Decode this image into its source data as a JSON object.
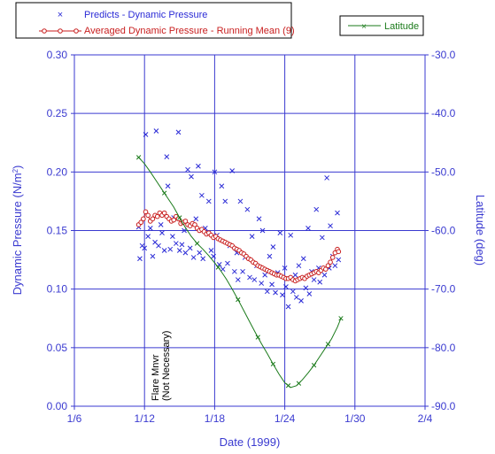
{
  "chart_data": {
    "type": "scatter",
    "xlabel": "Date (1999)",
    "ylabel_left": "Dynamic Pressure (N/m²)",
    "ylabel_left_main": "Dynamic Pressure (N/m",
    "ylabel_left_sup": "2",
    "ylabel_left_end": ")",
    "ylabel_right": "Latitude (deg)",
    "x_ticks": [
      "1/6",
      "1/12",
      "1/18",
      "1/24",
      "1/30",
      "2/4"
    ],
    "y_left_ticks": [
      "0.00",
      "0.05",
      "0.10",
      "0.15",
      "0.20",
      "0.25",
      "0.30"
    ],
    "y_right_ticks": [
      "-90.0",
      "-80.0",
      "-70.0",
      "-60.0",
      "-50.0",
      "-40.0",
      "-30.0"
    ],
    "xlim": [
      0,
      30
    ],
    "ylim_left": [
      0,
      0.3
    ],
    "ylim_right": [
      -90,
      -30
    ],
    "grid": true,
    "legend": {
      "predicts": "Predicts - Dynamic Pressure",
      "averaged": "Averaged Dynamic Pressure - Running Mean (9)",
      "latitude": "Latitude"
    },
    "annotation": {
      "line1": "Flare Mnvr",
      "line2": "(Not Necessary)"
    },
    "colors": {
      "predicts": "#2b2bd6",
      "averaged": "#c81e1e",
      "latitude": "#1a7a1a",
      "grid": "#3a3ad0",
      "text": "#3a3ad0"
    },
    "series": [
      {
        "name": "Predicts - Dynamic Pressure",
        "points": [
          [
            5.5,
            0.153
          ],
          [
            5.6,
            0.126
          ],
          [
            5.8,
            0.137
          ],
          [
            6.0,
            0.135
          ],
          [
            6.1,
            0.232
          ],
          [
            6.3,
            0.145
          ],
          [
            6.5,
            0.152
          ],
          [
            6.7,
            0.128
          ],
          [
            6.9,
            0.14
          ],
          [
            7.0,
            0.235
          ],
          [
            7.2,
            0.137
          ],
          [
            7.4,
            0.155
          ],
          [
            7.5,
            0.148
          ],
          [
            7.7,
            0.133
          ],
          [
            7.9,
            0.213
          ],
          [
            8.0,
            0.188
          ],
          [
            8.2,
            0.134
          ],
          [
            8.4,
            0.145
          ],
          [
            8.5,
            0.161
          ],
          [
            8.7,
            0.139
          ],
          [
            8.9,
            0.234
          ],
          [
            9.0,
            0.133
          ],
          [
            9.2,
            0.138
          ],
          [
            9.4,
            0.15
          ],
          [
            9.5,
            0.131
          ],
          [
            9.7,
            0.202
          ],
          [
            9.9,
            0.135
          ],
          [
            10.0,
            0.196
          ],
          [
            10.2,
            0.127
          ],
          [
            10.4,
            0.16
          ],
          [
            10.6,
            0.205
          ],
          [
            10.7,
            0.131
          ],
          [
            10.9,
            0.18
          ],
          [
            11.0,
            0.126
          ],
          [
            11.2,
            0.152
          ],
          [
            11.5,
            0.175
          ],
          [
            11.7,
            0.133
          ],
          [
            11.9,
            0.128
          ],
          [
            12.0,
            0.2
          ],
          [
            12.2,
            0.146
          ],
          [
            12.4,
            0.121
          ],
          [
            12.6,
            0.188
          ],
          [
            12.7,
            0.117
          ],
          [
            12.9,
            0.175
          ],
          [
            13.1,
            0.122
          ],
          [
            13.3,
            0.137
          ],
          [
            13.5,
            0.201
          ],
          [
            13.7,
            0.115
          ],
          [
            13.9,
            0.131
          ],
          [
            14.0,
            0.108
          ],
          [
            14.2,
            0.175
          ],
          [
            14.4,
            0.115
          ],
          [
            14.6,
            0.127
          ],
          [
            14.8,
            0.168
          ],
          [
            15.0,
            0.11
          ],
          [
            15.2,
            0.145
          ],
          [
            15.4,
            0.108
          ],
          [
            15.6,
            0.12
          ],
          [
            15.8,
            0.16
          ],
          [
            16.0,
            0.105
          ],
          [
            16.1,
            0.15
          ],
          [
            16.3,
            0.112
          ],
          [
            16.5,
            0.098
          ],
          [
            16.7,
            0.128
          ],
          [
            16.9,
            0.104
          ],
          [
            17.0,
            0.136
          ],
          [
            17.2,
            0.097
          ],
          [
            17.4,
            0.114
          ],
          [
            17.6,
            0.148
          ],
          [
            17.8,
            0.095
          ],
          [
            18.0,
            0.118
          ],
          [
            18.1,
            0.102
          ],
          [
            18.3,
            0.085
          ],
          [
            18.5,
            0.146
          ],
          [
            18.7,
            0.098
          ],
          [
            18.9,
            0.112
          ],
          [
            19.0,
            0.093
          ],
          [
            19.2,
            0.12
          ],
          [
            19.4,
            0.09
          ],
          [
            19.6,
            0.126
          ],
          [
            19.8,
            0.101
          ],
          [
            20.0,
            0.152
          ],
          [
            20.1,
            0.096
          ],
          [
            20.3,
            0.115
          ],
          [
            20.5,
            0.108
          ],
          [
            20.7,
            0.168
          ],
          [
            20.9,
            0.118
          ],
          [
            21.0,
            0.106
          ],
          [
            21.2,
            0.144
          ],
          [
            21.4,
            0.112
          ],
          [
            21.6,
            0.195
          ],
          [
            21.8,
            0.118
          ],
          [
            21.9,
            0.154
          ],
          [
            22.1,
            0.128
          ],
          [
            22.3,
            0.12
          ],
          [
            22.5,
            0.165
          ],
          [
            22.6,
            0.125
          ]
        ]
      },
      {
        "name": "Averaged Dynamic Pressure - Running Mean (9)",
        "points": [
          [
            5.5,
            0.155
          ],
          [
            5.7,
            0.157
          ],
          [
            5.9,
            0.16
          ],
          [
            6.1,
            0.166
          ],
          [
            6.3,
            0.163
          ],
          [
            6.5,
            0.158
          ],
          [
            6.7,
            0.16
          ],
          [
            6.9,
            0.163
          ],
          [
            7.1,
            0.162
          ],
          [
            7.3,
            0.165
          ],
          [
            7.5,
            0.163
          ],
          [
            7.7,
            0.165
          ],
          [
            7.9,
            0.162
          ],
          [
            8.1,
            0.16
          ],
          [
            8.3,
            0.158
          ],
          [
            8.5,
            0.159
          ],
          [
            8.7,
            0.162
          ],
          [
            8.9,
            0.16
          ],
          [
            9.1,
            0.156
          ],
          [
            9.3,
            0.157
          ],
          [
            9.5,
            0.158
          ],
          [
            9.7,
            0.155
          ],
          [
            9.9,
            0.154
          ],
          [
            10.1,
            0.156
          ],
          [
            10.3,
            0.155
          ],
          [
            10.5,
            0.152
          ],
          [
            10.7,
            0.15
          ],
          [
            10.9,
            0.151
          ],
          [
            11.1,
            0.149
          ],
          [
            11.3,
            0.147
          ],
          [
            11.5,
            0.148
          ],
          [
            11.7,
            0.146
          ],
          [
            11.9,
            0.144
          ],
          [
            12.1,
            0.145
          ],
          [
            12.3,
            0.143
          ],
          [
            12.5,
            0.142
          ],
          [
            12.7,
            0.141
          ],
          [
            12.9,
            0.14
          ],
          [
            13.1,
            0.139
          ],
          [
            13.3,
            0.138
          ],
          [
            13.5,
            0.137
          ],
          [
            13.7,
            0.135
          ],
          [
            13.9,
            0.134
          ],
          [
            14.1,
            0.133
          ],
          [
            14.3,
            0.131
          ],
          [
            14.5,
            0.13
          ],
          [
            14.7,
            0.128
          ],
          [
            14.9,
            0.126
          ],
          [
            15.1,
            0.125
          ],
          [
            15.3,
            0.123
          ],
          [
            15.5,
            0.122
          ],
          [
            15.7,
            0.12
          ],
          [
            15.9,
            0.119
          ],
          [
            16.1,
            0.118
          ],
          [
            16.3,
            0.117
          ],
          [
            16.5,
            0.116
          ],
          [
            16.7,
            0.115
          ],
          [
            16.9,
            0.114
          ],
          [
            17.1,
            0.113
          ],
          [
            17.3,
            0.112
          ],
          [
            17.5,
            0.112
          ],
          [
            17.7,
            0.111
          ],
          [
            17.9,
            0.11
          ],
          [
            18.1,
            0.109
          ],
          [
            18.3,
            0.109
          ],
          [
            18.5,
            0.11
          ],
          [
            18.7,
            0.108
          ],
          [
            18.9,
            0.107
          ],
          [
            19.1,
            0.108
          ],
          [
            19.3,
            0.109
          ],
          [
            19.5,
            0.11
          ],
          [
            19.7,
            0.109
          ],
          [
            19.9,
            0.111
          ],
          [
            20.1,
            0.112
          ],
          [
            20.3,
            0.113
          ],
          [
            20.5,
            0.114
          ],
          [
            20.7,
            0.115
          ],
          [
            20.9,
            0.114
          ],
          [
            21.1,
            0.116
          ],
          [
            21.3,
            0.118
          ],
          [
            21.5,
            0.117
          ],
          [
            21.7,
            0.12
          ],
          [
            21.9,
            0.123
          ],
          [
            22.1,
            0.127
          ],
          [
            22.3,
            0.131
          ],
          [
            22.5,
            0.134
          ],
          [
            22.6,
            0.132
          ]
        ]
      },
      {
        "name": "Latitude",
        "points": [
          [
            5.5,
            -47.5
          ],
          [
            6.0,
            -48.6
          ],
          [
            6.5,
            -50.0
          ],
          [
            7.0,
            -51.5
          ],
          [
            7.5,
            -53.0
          ],
          [
            8.0,
            -54.5
          ],
          [
            8.5,
            -56.0
          ],
          [
            9.0,
            -57.8
          ],
          [
            9.5,
            -59.5
          ],
          [
            10.0,
            -61.0
          ],
          [
            10.5,
            -62.2
          ],
          [
            11.0,
            -63.2
          ],
          [
            11.5,
            -64.3
          ],
          [
            12.0,
            -65.5
          ],
          [
            12.5,
            -66.8
          ],
          [
            13.0,
            -68.3
          ],
          [
            13.5,
            -70.0
          ],
          [
            14.0,
            -71.8
          ],
          [
            14.5,
            -73.7
          ],
          [
            15.0,
            -75.6
          ],
          [
            15.5,
            -77.5
          ],
          [
            16.0,
            -79.3
          ],
          [
            16.5,
            -81.0
          ],
          [
            17.0,
            -82.8
          ],
          [
            17.5,
            -84.5
          ],
          [
            18.0,
            -86.0
          ],
          [
            18.5,
            -86.8
          ],
          [
            19.0,
            -86.5
          ],
          [
            19.5,
            -85.5
          ],
          [
            20.0,
            -84.3
          ],
          [
            20.5,
            -83.0
          ],
          [
            21.0,
            -81.5
          ],
          [
            21.5,
            -80.0
          ],
          [
            22.0,
            -78.5
          ],
          [
            22.5,
            -76.5
          ],
          [
            22.8,
            -75.0
          ]
        ],
        "marker_x": [
          5.5,
          7.7,
          9.0,
          10.5,
          12.3,
          14.0,
          15.7,
          17.0,
          18.3,
          19.2,
          20.5,
          21.7,
          22.8
        ]
      }
    ]
  }
}
